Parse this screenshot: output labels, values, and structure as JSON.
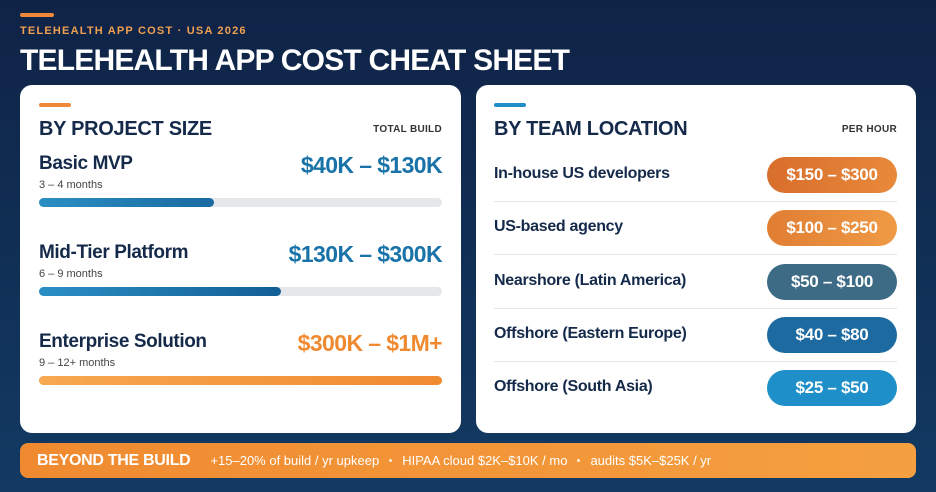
{
  "header": {
    "eyebrow": "TELEHEALTH APP COST · USA 2026",
    "title": "TELEHEALTH APP COST CHEAT SHEET"
  },
  "project_size": {
    "title": "BY PROJECT SIZE",
    "note": "TOTAL BUILD",
    "items": [
      {
        "name": "Basic MVP",
        "duration": "3 – 4 months",
        "cost": "$40K – $130K"
      },
      {
        "name": "Mid-Tier Platform",
        "duration": "6 – 9 months",
        "cost": "$130K – $300K"
      },
      {
        "name": "Enterprise Solution",
        "duration": "9 – 12+ months",
        "cost": "$300K – $1M+"
      }
    ]
  },
  "team_location": {
    "title": "BY TEAM LOCATION",
    "note": "PER HOUR",
    "items": [
      {
        "name": "In-house US developers",
        "rate": "$150 – $300"
      },
      {
        "name": "US-based agency",
        "rate": "$100 – $250"
      },
      {
        "name": "Nearshore (Latin America)",
        "rate": "$50 – $100"
      },
      {
        "name": "Offshore (Eastern Europe)",
        "rate": "$40 – $80"
      },
      {
        "name": "Offshore (South Asia)",
        "rate": "$25 – $50"
      }
    ]
  },
  "footer": {
    "label": "BEYOND THE BUILD",
    "items": [
      "+15–20% of build / yr upkeep",
      "HIPAA cloud $2K–$10K / mo",
      "audits $5K–$25K / yr"
    ]
  }
}
